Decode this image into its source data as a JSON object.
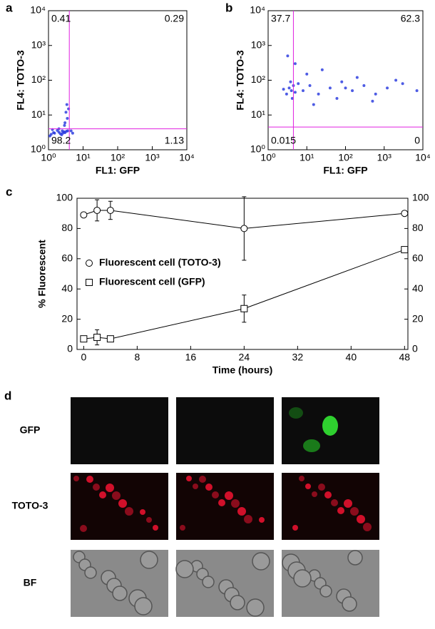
{
  "chart_data": [
    {
      "type": "scatter",
      "label": "a",
      "xlabel": "FL1: GFP",
      "ylabel": "FL4: TOTO-3",
      "color": "#2233dd",
      "gate_color": "#e020e0",
      "log_scale": true,
      "xlim": [
        1,
        10000
      ],
      "ylim": [
        1,
        10000
      ],
      "xticks": [
        {
          "value": 1,
          "label": "10⁰"
        },
        {
          "value": 10,
          "label": "10¹"
        },
        {
          "value": 100,
          "label": "10²"
        },
        {
          "value": 1000,
          "label": "10³"
        },
        {
          "value": 10000,
          "label": "10⁴"
        }
      ],
      "yticks": [
        {
          "value": 1,
          "label": "10⁰"
        },
        {
          "value": 10,
          "label": "10¹"
        },
        {
          "value": 100,
          "label": "10²"
        },
        {
          "value": 1000,
          "label": "10³"
        },
        {
          "value": 10000,
          "label": "10⁴"
        }
      ],
      "gate": [
        4,
        4
      ],
      "quadrants": [
        0.41,
        0.29,
        98.2,
        1.13
      ],
      "x": [
        1.5,
        2,
        2.5,
        3,
        1.2,
        1.8,
        2.2,
        2.8,
        3.3,
        1.4,
        2.6,
        3.6,
        1.1,
        2.0,
        3.0,
        3.5,
        3.2,
        3.8,
        3.4,
        2.9,
        4.5,
        5,
        1.3,
        2.4
      ],
      "y": [
        3,
        3.2,
        3.5,
        3.1,
        2.8,
        3.6,
        2.9,
        3.3,
        3.4,
        3.1,
        3.0,
        3.5,
        2.5,
        4,
        6,
        8,
        12,
        15,
        20,
        5,
        3.5,
        3,
        3.8,
        2.7
      ]
    },
    {
      "type": "scatter",
      "label": "b",
      "xlabel": "FL1: GFP",
      "ylabel": "FL4: TOTO-3",
      "color": "#2233dd",
      "gate_color": "#e020e0",
      "log_scale": true,
      "xlim": [
        1,
        10000
      ],
      "ylim": [
        1,
        10000
      ],
      "xticks": [
        {
          "value": 1,
          "label": "10⁰"
        },
        {
          "value": 10,
          "label": "10¹"
        },
        {
          "value": 100,
          "label": "10²"
        },
        {
          "value": 1000,
          "label": "10³"
        },
        {
          "value": 10000,
          "label": "10⁴"
        }
      ],
      "yticks": [
        {
          "value": 1,
          "label": "10⁰"
        },
        {
          "value": 10,
          "label": "10¹"
        },
        {
          "value": 100,
          "label": "10²"
        },
        {
          "value": 1000,
          "label": "10³"
        },
        {
          "value": 10000,
          "label": "10⁴"
        }
      ],
      "gate": [
        4.5,
        4.5
      ],
      "quadrants": [
        37.7,
        62.3,
        0.015,
        0
      ],
      "x": [
        3,
        3.5,
        4,
        4.5,
        5,
        3.8,
        4.2,
        2.5,
        6,
        8,
        12,
        20,
        40,
        80,
        150,
        300,
        600,
        1200,
        3000,
        7000,
        10,
        25,
        60,
        200,
        500,
        2000,
        5,
        3.2,
        15,
        100
      ],
      "y": [
        40,
        60,
        50,
        70,
        45,
        90,
        30,
        55,
        80,
        50,
        70,
        40,
        60,
        90,
        50,
        70,
        40,
        60,
        80,
        50,
        150,
        200,
        30,
        120,
        25,
        100,
        300,
        500,
        20,
        60
      ]
    },
    {
      "type": "line",
      "label": "c",
      "xlabel": "Time (hours)",
      "ylabel": "% Fluorescent",
      "legend": "center-left",
      "xlim": [
        -1,
        48.5
      ],
      "ylim": [
        0,
        100
      ],
      "xticks": [
        0,
        8,
        16,
        24,
        32,
        40,
        48
      ],
      "yticks": [
        0,
        20,
        40,
        60,
        80,
        100
      ],
      "y2lim": [
        0,
        100
      ],
      "y2ticks": [
        0,
        20,
        40,
        60,
        80,
        100
      ],
      "x": [
        0,
        2,
        4,
        24,
        48
      ],
      "series": [
        {
          "name": "Fluorescent cell (TOTO-3)",
          "marker": "circle",
          "color": "#000000",
          "values": [
            89,
            92,
            92,
            80,
            90
          ],
          "errors": [
            0,
            7,
            6,
            21,
            0
          ]
        },
        {
          "name": "Fluorescent cell (GFP)",
          "marker": "square",
          "color": "#000000",
          "values": [
            7,
            8,
            7,
            27,
            66
          ],
          "errors": [
            0,
            5,
            1,
            9,
            0
          ]
        }
      ]
    }
  ],
  "images": {
    "label": "d",
    "rows": [
      "GFP",
      "TOTO-3",
      "BF"
    ]
  }
}
